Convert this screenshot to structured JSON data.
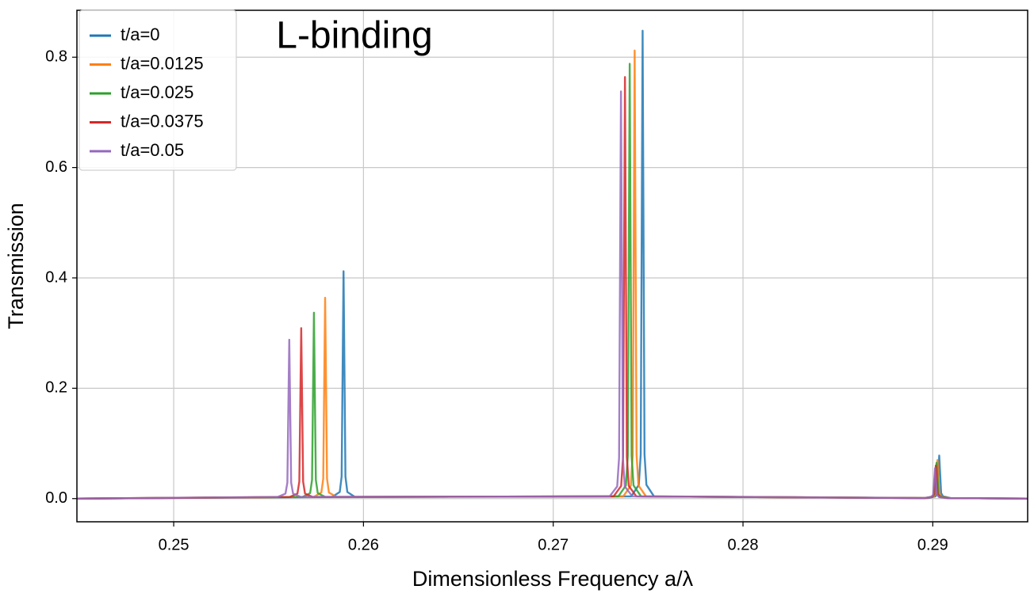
{
  "chart_data": {
    "type": "line",
    "ylabel": "Transmission",
    "xlabel": "Dimensionless Frequency a/λ",
    "annotation": {
      "text": "L-binding",
      "color": "#b02a1c"
    },
    "xlim": [
      0.2449,
      0.295
    ],
    "ylim": [
      -0.042,
      0.885
    ],
    "xticks": [
      0.25,
      0.26,
      0.27,
      0.28,
      0.29
    ],
    "yticks": [
      {
        "value": 0,
        "label": "0.0"
      },
      0.2,
      0.4,
      0.6,
      0.8
    ],
    "grid": true,
    "legend": "upper left",
    "series": [
      {
        "name": "t/a=0",
        "color": "#1f77b4",
        "x": [
          0.2449,
          0.25835,
          0.25875,
          0.25885,
          0.25895,
          0.25905,
          0.25915,
          0.25955,
          0.27411,
          0.27451,
          0.27461,
          0.27471,
          0.27481,
          0.27491,
          0.27531,
          0.28974,
          0.29014,
          0.29024,
          0.29034,
          0.29044,
          0.29054,
          0.29094,
          0.295
        ],
        "values": [
          0,
          0.003,
          0.012,
          0.04,
          0.412,
          0.04,
          0.012,
          0.003,
          0.004,
          0.025,
          0.08,
          0.848,
          0.08,
          0.025,
          0.004,
          0.001,
          0.004,
          0.01,
          0.078,
          0.01,
          0.004,
          0.001,
          0
        ]
      },
      {
        "name": "t/a=0.0125",
        "color": "#ff7f0e",
        "x": [
          0.2449,
          0.25738,
          0.25778,
          0.25788,
          0.25798,
          0.25808,
          0.25818,
          0.25858,
          0.27369,
          0.27409,
          0.27419,
          0.27429,
          0.27439,
          0.27449,
          0.27489,
          0.28965,
          0.29005,
          0.29015,
          0.29025,
          0.29035,
          0.29045,
          0.29085,
          0.295
        ],
        "values": [
          0,
          0.003,
          0.011,
          0.036,
          0.364,
          0.036,
          0.011,
          0.003,
          0.004,
          0.024,
          0.08,
          0.812,
          0.08,
          0.024,
          0.004,
          0.001,
          0.004,
          0.009,
          0.07,
          0.009,
          0.004,
          0.001,
          0
        ]
      },
      {
        "name": "t/a=0.025",
        "color": "#2ca02c",
        "x": [
          0.2449,
          0.25679,
          0.25719,
          0.25729,
          0.25739,
          0.25749,
          0.25759,
          0.25799,
          0.27343,
          0.27383,
          0.27393,
          0.27403,
          0.27413,
          0.27423,
          0.27463,
          0.2896,
          0.29,
          0.2901,
          0.2902,
          0.2903,
          0.2904,
          0.2908,
          0.295
        ],
        "values": [
          0,
          0.003,
          0.01,
          0.034,
          0.337,
          0.034,
          0.01,
          0.003,
          0.004,
          0.024,
          0.078,
          0.788,
          0.078,
          0.024,
          0.004,
          0.001,
          0.004,
          0.008,
          0.065,
          0.008,
          0.004,
          0.001,
          0
        ]
      },
      {
        "name": "t/a=0.0375",
        "color": "#d62728",
        "x": [
          0.2449,
          0.25612,
          0.25652,
          0.25662,
          0.25672,
          0.25682,
          0.25692,
          0.25732,
          0.27318,
          0.27358,
          0.27368,
          0.27378,
          0.27388,
          0.27398,
          0.27438,
          0.28956,
          0.28996,
          0.29006,
          0.29016,
          0.29026,
          0.29036,
          0.29076,
          0.295
        ],
        "values": [
          0,
          0.003,
          0.009,
          0.031,
          0.309,
          0.031,
          0.009,
          0.003,
          0.004,
          0.023,
          0.076,
          0.764,
          0.076,
          0.023,
          0.004,
          0.001,
          0.003,
          0.008,
          0.06,
          0.008,
          0.003,
          0.001,
          0
        ]
      },
      {
        "name": "t/a=0.05",
        "color": "#9467bd",
        "x": [
          0.2449,
          0.25549,
          0.25589,
          0.25599,
          0.25609,
          0.25619,
          0.25629,
          0.25669,
          0.27297,
          0.27337,
          0.27347,
          0.27357,
          0.27367,
          0.27377,
          0.27417,
          0.28952,
          0.28992,
          0.29002,
          0.29012,
          0.29022,
          0.29032,
          0.29072,
          0.295
        ],
        "values": [
          0,
          0.003,
          0.009,
          0.029,
          0.288,
          0.029,
          0.009,
          0.003,
          0.004,
          0.022,
          0.074,
          0.738,
          0.074,
          0.022,
          0.004,
          0.001,
          0.003,
          0.007,
          0.055,
          0.007,
          0.003,
          0.001,
          0
        ]
      }
    ]
  }
}
